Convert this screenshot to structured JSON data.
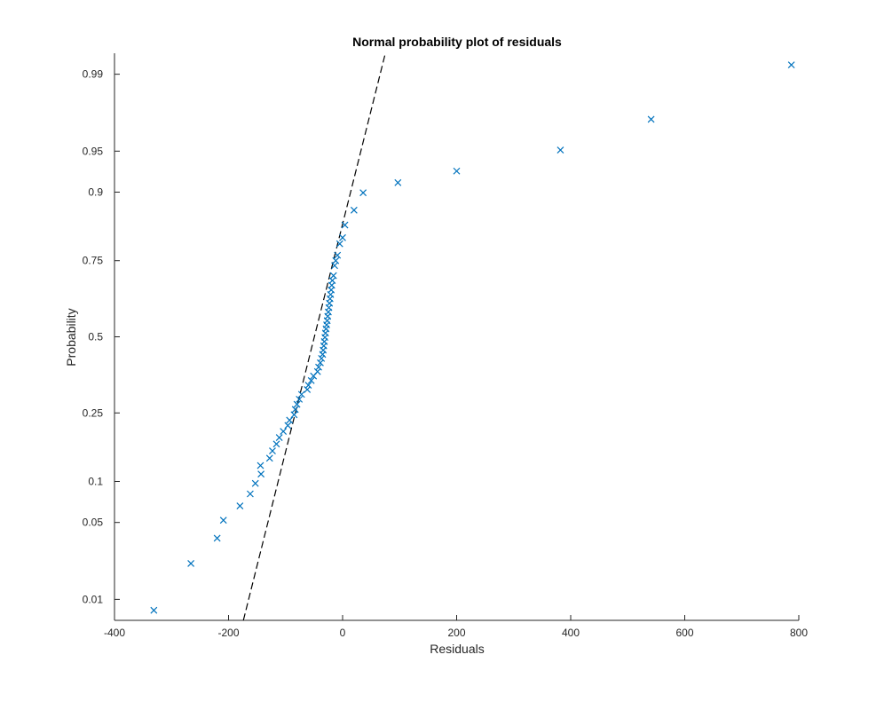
{
  "chart_data": {
    "type": "scatter",
    "title": "Normal probability plot of residuals",
    "xlabel": "Residuals",
    "ylabel": "Probability",
    "xlim": [
      -400,
      800
    ],
    "xticks": [
      -400,
      -200,
      0,
      200,
      400,
      600,
      800
    ],
    "xtick_labels": [
      "-400",
      "-200",
      "0",
      "200",
      "400",
      "600",
      "800"
    ],
    "ylim": [
      0.006,
      0.994
    ],
    "yscale": "normal-probability",
    "yticks": [
      0.01,
      0.05,
      0.1,
      0.25,
      0.5,
      0.75,
      0.9,
      0.95,
      0.99
    ],
    "ytick_labels": [
      "0.01",
      "0.05",
      "0.1",
      "0.25",
      "0.5",
      "0.75",
      "0.9",
      "0.95",
      "0.99"
    ],
    "grid": false,
    "marker": "x",
    "marker_color": "#0072BD",
    "reference_line": {
      "style": "dashed",
      "color": "#000000",
      "points": [
        [
          -174,
          0.006
        ],
        [
          75,
          0.994
        ]
      ]
    },
    "series": [
      {
        "x": [
          -331,
          -266,
          -220,
          -209,
          -180,
          -162,
          -153,
          -143,
          -144,
          -128,
          -123,
          -116,
          -111,
          -104,
          -96,
          -93,
          -85,
          -83,
          -80,
          -76,
          -72,
          -62,
          -60,
          -55,
          -51,
          -44,
          -42,
          -39,
          -37,
          -35,
          -34,
          -33,
          -32,
          -31,
          -30,
          -29,
          -28,
          -27,
          -26,
          -25,
          -24,
          -23,
          -22,
          -21,
          -20,
          -19,
          -18,
          -16,
          -14,
          -12,
          -9,
          -5,
          0,
          4,
          20,
          36,
          97,
          200,
          382,
          541,
          787
        ],
        "y": [
          0.0077,
          0.0223,
          0.0372,
          0.0521,
          0.067,
          0.082,
          0.097,
          0.112,
          0.127,
          0.141,
          0.156,
          0.171,
          0.186,
          0.201,
          0.216,
          0.23,
          0.245,
          0.26,
          0.275,
          0.29,
          0.305,
          0.32,
          0.334,
          0.349,
          0.364,
          0.379,
          0.394,
          0.409,
          0.424,
          0.438,
          0.453,
          0.468,
          0.483,
          0.498,
          0.513,
          0.528,
          0.542,
          0.557,
          0.572,
          0.587,
          0.602,
          0.617,
          0.632,
          0.646,
          0.661,
          0.676,
          0.691,
          0.706,
          0.736,
          0.75,
          0.765,
          0.795,
          0.81,
          0.839,
          0.869,
          0.899,
          0.914,
          0.929,
          0.951,
          0.973,
          0.992
        ]
      }
    ]
  }
}
